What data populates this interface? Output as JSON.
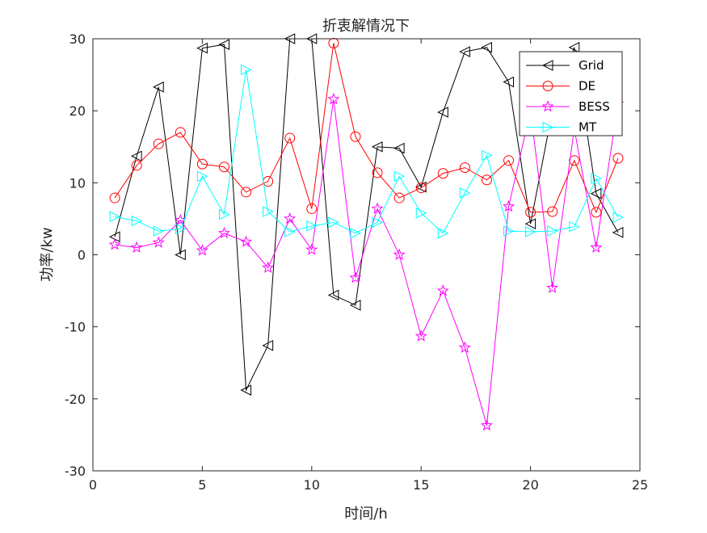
{
  "chart_data": {
    "type": "line",
    "title": "折衷解情况下",
    "xlabel": "时间/h",
    "ylabel": "功率/kw",
    "xlim": [
      0,
      25
    ],
    "ylim": [
      -30,
      30
    ],
    "xticks": [
      0,
      5,
      10,
      15,
      20,
      25
    ],
    "yticks": [
      -30,
      -20,
      -10,
      0,
      10,
      20,
      30
    ],
    "grid": false,
    "legend_position": "top-right",
    "x": [
      1,
      2,
      3,
      4,
      5,
      6,
      7,
      8,
      9,
      10,
      11,
      12,
      13,
      14,
      15,
      16,
      17,
      18,
      19,
      20,
      21,
      22,
      23,
      24
    ],
    "series": [
      {
        "name": "Grid",
        "color": "#000000",
        "marker": "triangle-left",
        "values": [
          2.5,
          13.7,
          23.3,
          0.0,
          28.7,
          29.2,
          -18.8,
          -12.6,
          30.0,
          30.0,
          -5.6,
          -7.0,
          15.0,
          14.8,
          9.4,
          19.8,
          28.2,
          28.8,
          24.0,
          4.3,
          20.0,
          28.8,
          8.5,
          3.1
        ]
      },
      {
        "name": "DE",
        "color": "#ff0000",
        "marker": "circle",
        "values": [
          7.9,
          12.4,
          15.4,
          17.0,
          12.6,
          12.2,
          8.7,
          10.2,
          16.2,
          6.4,
          29.4,
          16.4,
          11.4,
          7.9,
          9.3,
          11.3,
          12.1,
          10.4,
          13.1,
          5.9,
          6.0,
          13.1,
          5.9,
          13.4
        ]
      },
      {
        "name": "BESS",
        "color": "#ff00ff",
        "marker": "star",
        "values": [
          1.4,
          1.0,
          1.7,
          4.8,
          0.6,
          3.0,
          1.8,
          -1.8,
          5.0,
          0.7,
          21.6,
          -3.2,
          6.4,
          0.0,
          -11.3,
          -5.0,
          -12.9,
          -23.7,
          6.7,
          20.0,
          -4.6,
          17.5,
          1.0,
          21.0
        ]
      },
      {
        "name": "MT",
        "color": "#00ffff",
        "marker": "triangle-right",
        "values": [
          5.3,
          4.7,
          3.3,
          3.6,
          10.9,
          5.6,
          25.7,
          6.0,
          3.2,
          4.0,
          4.5,
          3.0,
          4.5,
          10.9,
          5.8,
          3.0,
          8.6,
          13.8,
          3.3,
          3.2,
          3.3,
          3.9,
          10.6,
          5.2
        ]
      }
    ]
  }
}
